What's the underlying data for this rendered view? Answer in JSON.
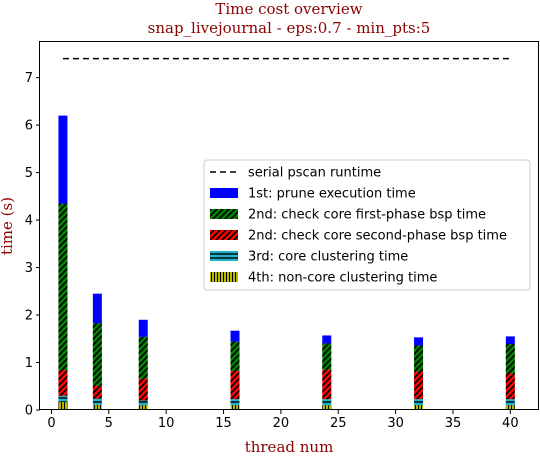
{
  "chart_data": {
    "type": "bar",
    "title_lines": [
      "Time cost overview",
      "snap_livejournal - eps:0.7 - min_pts:5"
    ],
    "xlabel": "thread num",
    "ylabel": "time (s)",
    "xlim": [
      -1,
      42.5
    ],
    "ylim": [
      0,
      7.75
    ],
    "xticks": [
      0,
      5,
      10,
      15,
      20,
      25,
      30,
      35,
      40
    ],
    "yticks": [
      0,
      1,
      2,
      3,
      4,
      5,
      6,
      7
    ],
    "x": [
      1,
      4,
      8,
      16,
      24,
      32,
      40
    ],
    "serial_runtime": 7.4,
    "legend_position": "center-right",
    "series": [
      {
        "name": "4th: non-core clustering time",
        "color": "#cccc00",
        "hatch": "vlines",
        "values": [
          0.17,
          0.11,
          0.1,
          0.1,
          0.1,
          0.1,
          0.1
        ]
      },
      {
        "name": "3rd: core clustering time",
        "color": "#20b2c8",
        "hatch": "hlines",
        "values": [
          0.13,
          0.13,
          0.1,
          0.13,
          0.13,
          0.13,
          0.13
        ]
      },
      {
        "name": "2nd: check core second-phase bsp time",
        "color": "#ff0000",
        "hatch": "diag",
        "values": [
          0.54,
          0.27,
          0.46,
          0.59,
          0.62,
          0.58,
          0.54
        ]
      },
      {
        "name": "2nd: check core first-phase bsp time",
        "color": "#008000",
        "hatch": "diag",
        "values": [
          3.51,
          1.32,
          0.88,
          0.62,
          0.55,
          0.55,
          0.62
        ]
      },
      {
        "name": "1st: prune execution time",
        "color": "#0000ff",
        "hatch": "none",
        "values": [
          1.85,
          0.62,
          0.36,
          0.23,
          0.17,
          0.17,
          0.16
        ]
      }
    ],
    "legend_order": [
      "serial pscan runtime",
      "1st: prune execution time",
      "2nd: check core first-phase bsp time",
      "2nd: check core second-phase bsp time",
      "3rd: core clustering time",
      "4th: non-core clustering time"
    ]
  }
}
